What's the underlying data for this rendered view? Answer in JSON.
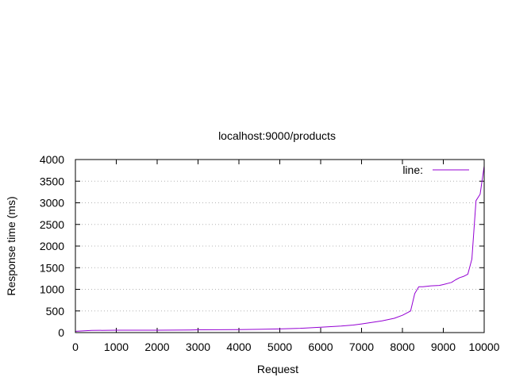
{
  "chart_data": {
    "type": "line",
    "title": "localhost:9000/products",
    "xlabel": "Request",
    "ylabel": "Response time (ms)",
    "xlim": [
      0,
      10000
    ],
    "ylim": [
      0,
      4000
    ],
    "xticks": [
      0,
      1000,
      2000,
      3000,
      4000,
      5000,
      6000,
      7000,
      8000,
      9000,
      10000
    ],
    "yticks": [
      0,
      500,
      1000,
      1500,
      2000,
      2500,
      3000,
      3500,
      4000
    ],
    "grid": "horizontal dotted",
    "legend_position": "top-right",
    "series": [
      {
        "name": "line:",
        "color": "#9400d3",
        "x": [
          0,
          400,
          1000,
          2000,
          2800,
          3000,
          4000,
          4500,
          5000,
          5500,
          6000,
          6500,
          6800,
          7000,
          7500,
          7800,
          8000,
          8200,
          8300,
          8400,
          8500,
          8700,
          8900,
          9000,
          9200,
          9300,
          9400,
          9500,
          9600,
          9700,
          9800,
          9900,
          10000
        ],
        "values": [
          30,
          50,
          55,
          55,
          60,
          65,
          70,
          75,
          85,
          100,
          125,
          150,
          175,
          200,
          270,
          330,
          400,
          500,
          900,
          1060,
          1060,
          1080,
          1090,
          1110,
          1160,
          1220,
          1270,
          1300,
          1350,
          1700,
          3050,
          3200,
          3850
        ]
      }
    ]
  }
}
